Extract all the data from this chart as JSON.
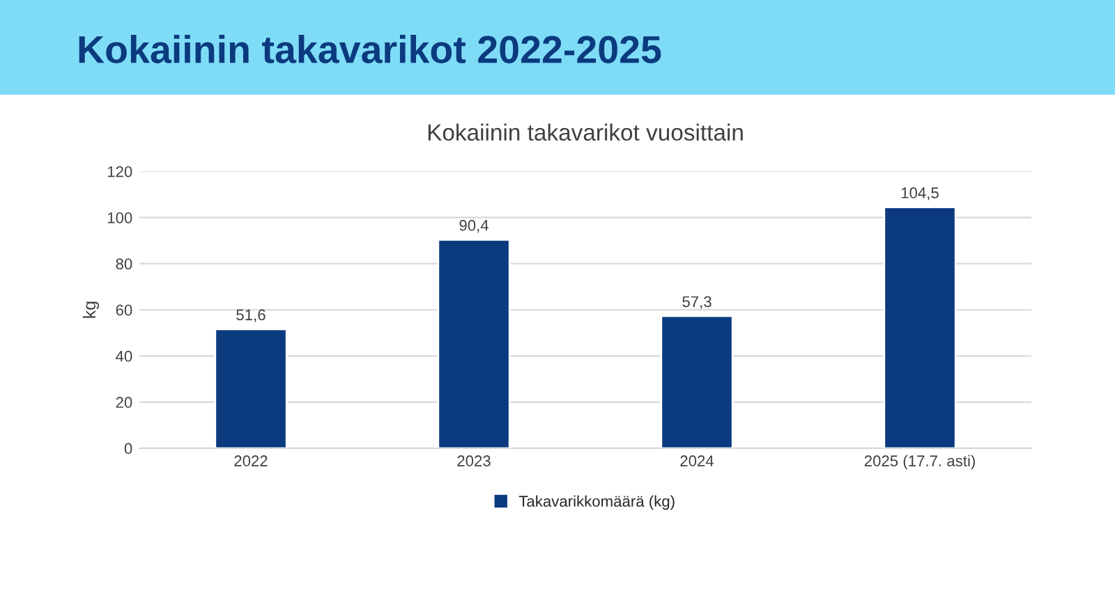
{
  "chart_data": {
    "type": "bar",
    "title": "Kokaiinin takavarikot 2022-2025",
    "subtitle": "Kokaiinin takavarikot vuosittain",
    "ylabel": "kg",
    "categories": [
      "2022",
      "2023",
      "2024",
      "2025 (17.7. asti)"
    ],
    "series": [
      {
        "name": "Takavarikkomäärä (kg)",
        "color": "#0b3a7e",
        "values": [
          51.6,
          90.4,
          57.3,
          104.5
        ],
        "value_labels": [
          "51,6",
          "90,4",
          "57,3",
          "104,5"
        ]
      }
    ],
    "ylim": [
      0,
      120
    ],
    "yticks": [
      0,
      20,
      40,
      60,
      80,
      100,
      120
    ],
    "grid": "y",
    "legend": "bottom"
  }
}
